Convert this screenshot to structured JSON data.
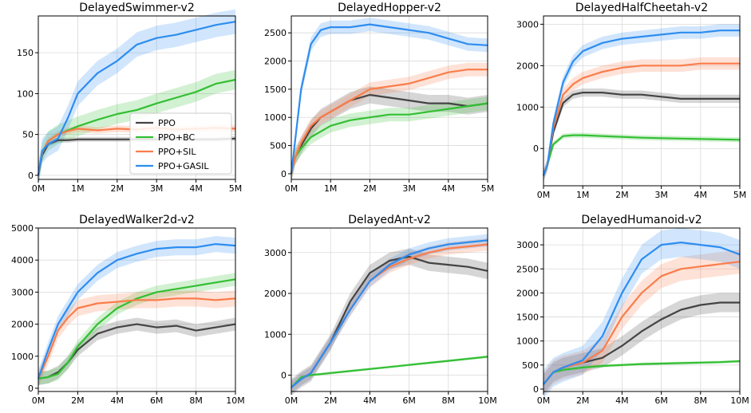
{
  "legend": {
    "entries": [
      {
        "name": "PPO",
        "color": "#444444"
      },
      {
        "name": "PPO+BC",
        "color": "#33bf33"
      },
      {
        "name": "PPO+SIL",
        "color": "#fa7d4b"
      },
      {
        "name": "PPO+GASIL",
        "color": "#2e8df0"
      }
    ]
  },
  "chart_data": [
    {
      "type": "line",
      "title": "DelayedSwimmer-v2",
      "x_ticks": [
        "0M",
        "1M",
        "2M",
        "3M",
        "4M",
        "5M"
      ],
      "xlim": [
        0,
        5
      ],
      "ylim": [
        -5,
        195
      ],
      "y_ticks": [
        0,
        50,
        100,
        150
      ],
      "grid": true,
      "legend_position": "lower-right",
      "x": [
        0,
        0.1,
        0.25,
        0.5,
        0.75,
        1,
        1.5,
        2,
        2.5,
        3,
        3.5,
        4,
        4.5,
        5
      ],
      "series": [
        {
          "name": "PPO",
          "values": [
            0,
            25,
            38,
            43,
            43,
            44,
            44,
            44,
            44,
            44,
            45,
            44,
            44,
            45
          ],
          "band": 3
        },
        {
          "name": "PPO+BC",
          "values": [
            0,
            28,
            42,
            50,
            55,
            60,
            68,
            75,
            80,
            88,
            95,
            102,
            112,
            117
          ],
          "band": 12
        },
        {
          "name": "PPO+SIL",
          "values": [
            0,
            28,
            42,
            50,
            54,
            57,
            55,
            57,
            56,
            58,
            56,
            57,
            58,
            57
          ],
          "band": 4
        },
        {
          "name": "PPO+GASIL",
          "values": [
            0,
            30,
            38,
            45,
            70,
            100,
            125,
            140,
            160,
            168,
            172,
            178,
            184,
            188
          ],
          "band": 15
        }
      ]
    },
    {
      "type": "line",
      "title": "DelayedHopper-v2",
      "x_ticks": [
        "0M",
        "1M",
        "2M",
        "3M",
        "4M",
        "5M"
      ],
      "xlim": [
        0,
        5
      ],
      "ylim": [
        -100,
        2800
      ],
      "y_ticks": [
        0,
        500,
        1000,
        1500,
        2000,
        2500
      ],
      "grid": true,
      "x": [
        0,
        0.1,
        0.25,
        0.5,
        0.75,
        1,
        1.5,
        2,
        2.5,
        3,
        3.5,
        4,
        4.5,
        5
      ],
      "series": [
        {
          "name": "PPO",
          "values": [
            0,
            300,
            500,
            800,
            1000,
            1100,
            1300,
            1400,
            1350,
            1300,
            1250,
            1250,
            1200,
            1250
          ],
          "band": 150
        },
        {
          "name": "PPO+BC",
          "values": [
            0,
            300,
            450,
            650,
            750,
            850,
            950,
            1000,
            1050,
            1050,
            1100,
            1150,
            1200,
            1250
          ],
          "band": 120
        },
        {
          "name": "PPO+SIL",
          "values": [
            0,
            300,
            550,
            850,
            1000,
            1100,
            1300,
            1500,
            1550,
            1600,
            1700,
            1800,
            1850,
            1850
          ],
          "band": 120
        },
        {
          "name": "PPO+GASIL",
          "values": [
            0,
            600,
            1500,
            2300,
            2550,
            2600,
            2600,
            2650,
            2600,
            2550,
            2500,
            2400,
            2300,
            2280
          ],
          "band": 120
        }
      ]
    },
    {
      "type": "line",
      "title": "DelayedHalfCheetah-v2",
      "x_ticks": [
        "0M",
        "1M",
        "2M",
        "3M",
        "4M",
        "5M"
      ],
      "xlim": [
        0,
        5
      ],
      "ylim": [
        -900,
        3200
      ],
      "y_ticks": [
        0,
        1000,
        2000,
        3000
      ],
      "grid": true,
      "x": [
        0,
        0.1,
        0.25,
        0.5,
        0.75,
        1,
        1.5,
        2,
        2.5,
        3,
        3.5,
        4,
        4.5,
        5
      ],
      "series": [
        {
          "name": "PPO",
          "values": [
            -650,
            -400,
            400,
            1100,
            1300,
            1350,
            1350,
            1300,
            1300,
            1250,
            1200,
            1200,
            1200,
            1200
          ],
          "band": 100
        },
        {
          "name": "PPO+BC",
          "values": [
            -650,
            -400,
            100,
            300,
            320,
            320,
            300,
            280,
            260,
            250,
            240,
            230,
            220,
            210
          ],
          "band": 60
        },
        {
          "name": "PPO+SIL",
          "values": [
            -650,
            -400,
            500,
            1300,
            1550,
            1700,
            1850,
            1950,
            2000,
            2000,
            2000,
            2050,
            2050,
            2050
          ],
          "band": 150
        },
        {
          "name": "PPO+GASIL",
          "values": [
            -650,
            -400,
            600,
            1600,
            2100,
            2350,
            2550,
            2650,
            2700,
            2750,
            2800,
            2800,
            2850,
            2850
          ],
          "band": 150
        }
      ]
    },
    {
      "type": "line",
      "title": "DelayedWalker2d-v2",
      "x_ticks": [
        "0M",
        "2M",
        "4M",
        "6M",
        "8M",
        "10M"
      ],
      "xlim": [
        0,
        10
      ],
      "ylim": [
        -100,
        5000
      ],
      "y_ticks": [
        0,
        1000,
        2000,
        3000,
        4000,
        5000
      ],
      "grid": true,
      "x": [
        0,
        0.5,
        1,
        1.5,
        2,
        3,
        4,
        5,
        6,
        7,
        8,
        9,
        10
      ],
      "series": [
        {
          "name": "PPO",
          "values": [
            300,
            350,
            500,
            800,
            1200,
            1700,
            1900,
            2000,
            1900,
            1950,
            1800,
            1900,
            2000
          ],
          "band": 200
        },
        {
          "name": "PPO+BC",
          "values": [
            300,
            350,
            450,
            800,
            1300,
            2000,
            2500,
            2800,
            3000,
            3100,
            3200,
            3300,
            3400
          ],
          "band": 200
        },
        {
          "name": "PPO+SIL",
          "values": [
            300,
            1000,
            1800,
            2200,
            2500,
            2650,
            2700,
            2750,
            2750,
            2800,
            2800,
            2750,
            2800
          ],
          "band": 250
        },
        {
          "name": "PPO+GASIL",
          "values": [
            300,
            1200,
            2000,
            2500,
            3000,
            3600,
            4000,
            4200,
            4350,
            4400,
            4400,
            4500,
            4450
          ],
          "band": 250
        }
      ]
    },
    {
      "type": "line",
      "title": "DelayedAnt-v2",
      "x_ticks": [
        "0M",
        "2M",
        "4M",
        "6M",
        "8M",
        "10M"
      ],
      "xlim": [
        0,
        10
      ],
      "ylim": [
        -400,
        3600
      ],
      "y_ticks": [
        0,
        1000,
        2000,
        3000
      ],
      "grid": true,
      "x": [
        0,
        0.5,
        1,
        2,
        3,
        4,
        5,
        6,
        7,
        8,
        9,
        10
      ],
      "series": [
        {
          "name": "PPO",
          "values": [
            -300,
            -100,
            50,
            800,
            1800,
            2500,
            2800,
            2900,
            2750,
            2700,
            2650,
            2550
          ],
          "band": 200
        },
        {
          "name": "PPO+BC",
          "values": [
            -300,
            -50,
            0,
            50,
            100,
            150,
            200,
            250,
            300,
            350,
            400,
            450
          ],
          "band": 30
        },
        {
          "name": "PPO+SIL",
          "values": [
            -300,
            -100,
            50,
            800,
            1600,
            2300,
            2650,
            2850,
            3000,
            3100,
            3150,
            3200
          ],
          "band": 150
        },
        {
          "name": "PPO+GASIL",
          "values": [
            -300,
            -100,
            50,
            800,
            1600,
            2300,
            2700,
            2950,
            3100,
            3200,
            3250,
            3300
          ],
          "band": 150
        }
      ]
    },
    {
      "type": "line",
      "title": "DelayedHumanoid-v2",
      "x_ticks": [
        "0M",
        "2M",
        "4M",
        "6M",
        "8M",
        "10M"
      ],
      "xlim": [
        0,
        10
      ],
      "ylim": [
        -50,
        3350
      ],
      "y_ticks": [
        0,
        500,
        1000,
        1500,
        2000,
        2500,
        3000
      ],
      "grid": true,
      "x": [
        0,
        0.5,
        1,
        2,
        3,
        4,
        5,
        6,
        7,
        8,
        9,
        10
      ],
      "series": [
        {
          "name": "PPO",
          "values": [
            100,
            350,
            450,
            550,
            650,
            900,
            1200,
            1450,
            1650,
            1750,
            1800,
            1800
          ],
          "band": 200
        },
        {
          "name": "PPO+BC",
          "values": [
            100,
            350,
            400,
            450,
            480,
            500,
            520,
            530,
            540,
            550,
            560,
            580
          ],
          "band": 30
        },
        {
          "name": "PPO+SIL",
          "values": [
            100,
            350,
            450,
            550,
            800,
            1500,
            2000,
            2350,
            2500,
            2550,
            2600,
            2650
          ],
          "band": 250
        },
        {
          "name": "PPO+GASIL",
          "values": [
            100,
            350,
            450,
            600,
            1100,
            2000,
            2700,
            3000,
            3050,
            3000,
            2950,
            2800
          ],
          "band": 300
        }
      ]
    }
  ]
}
